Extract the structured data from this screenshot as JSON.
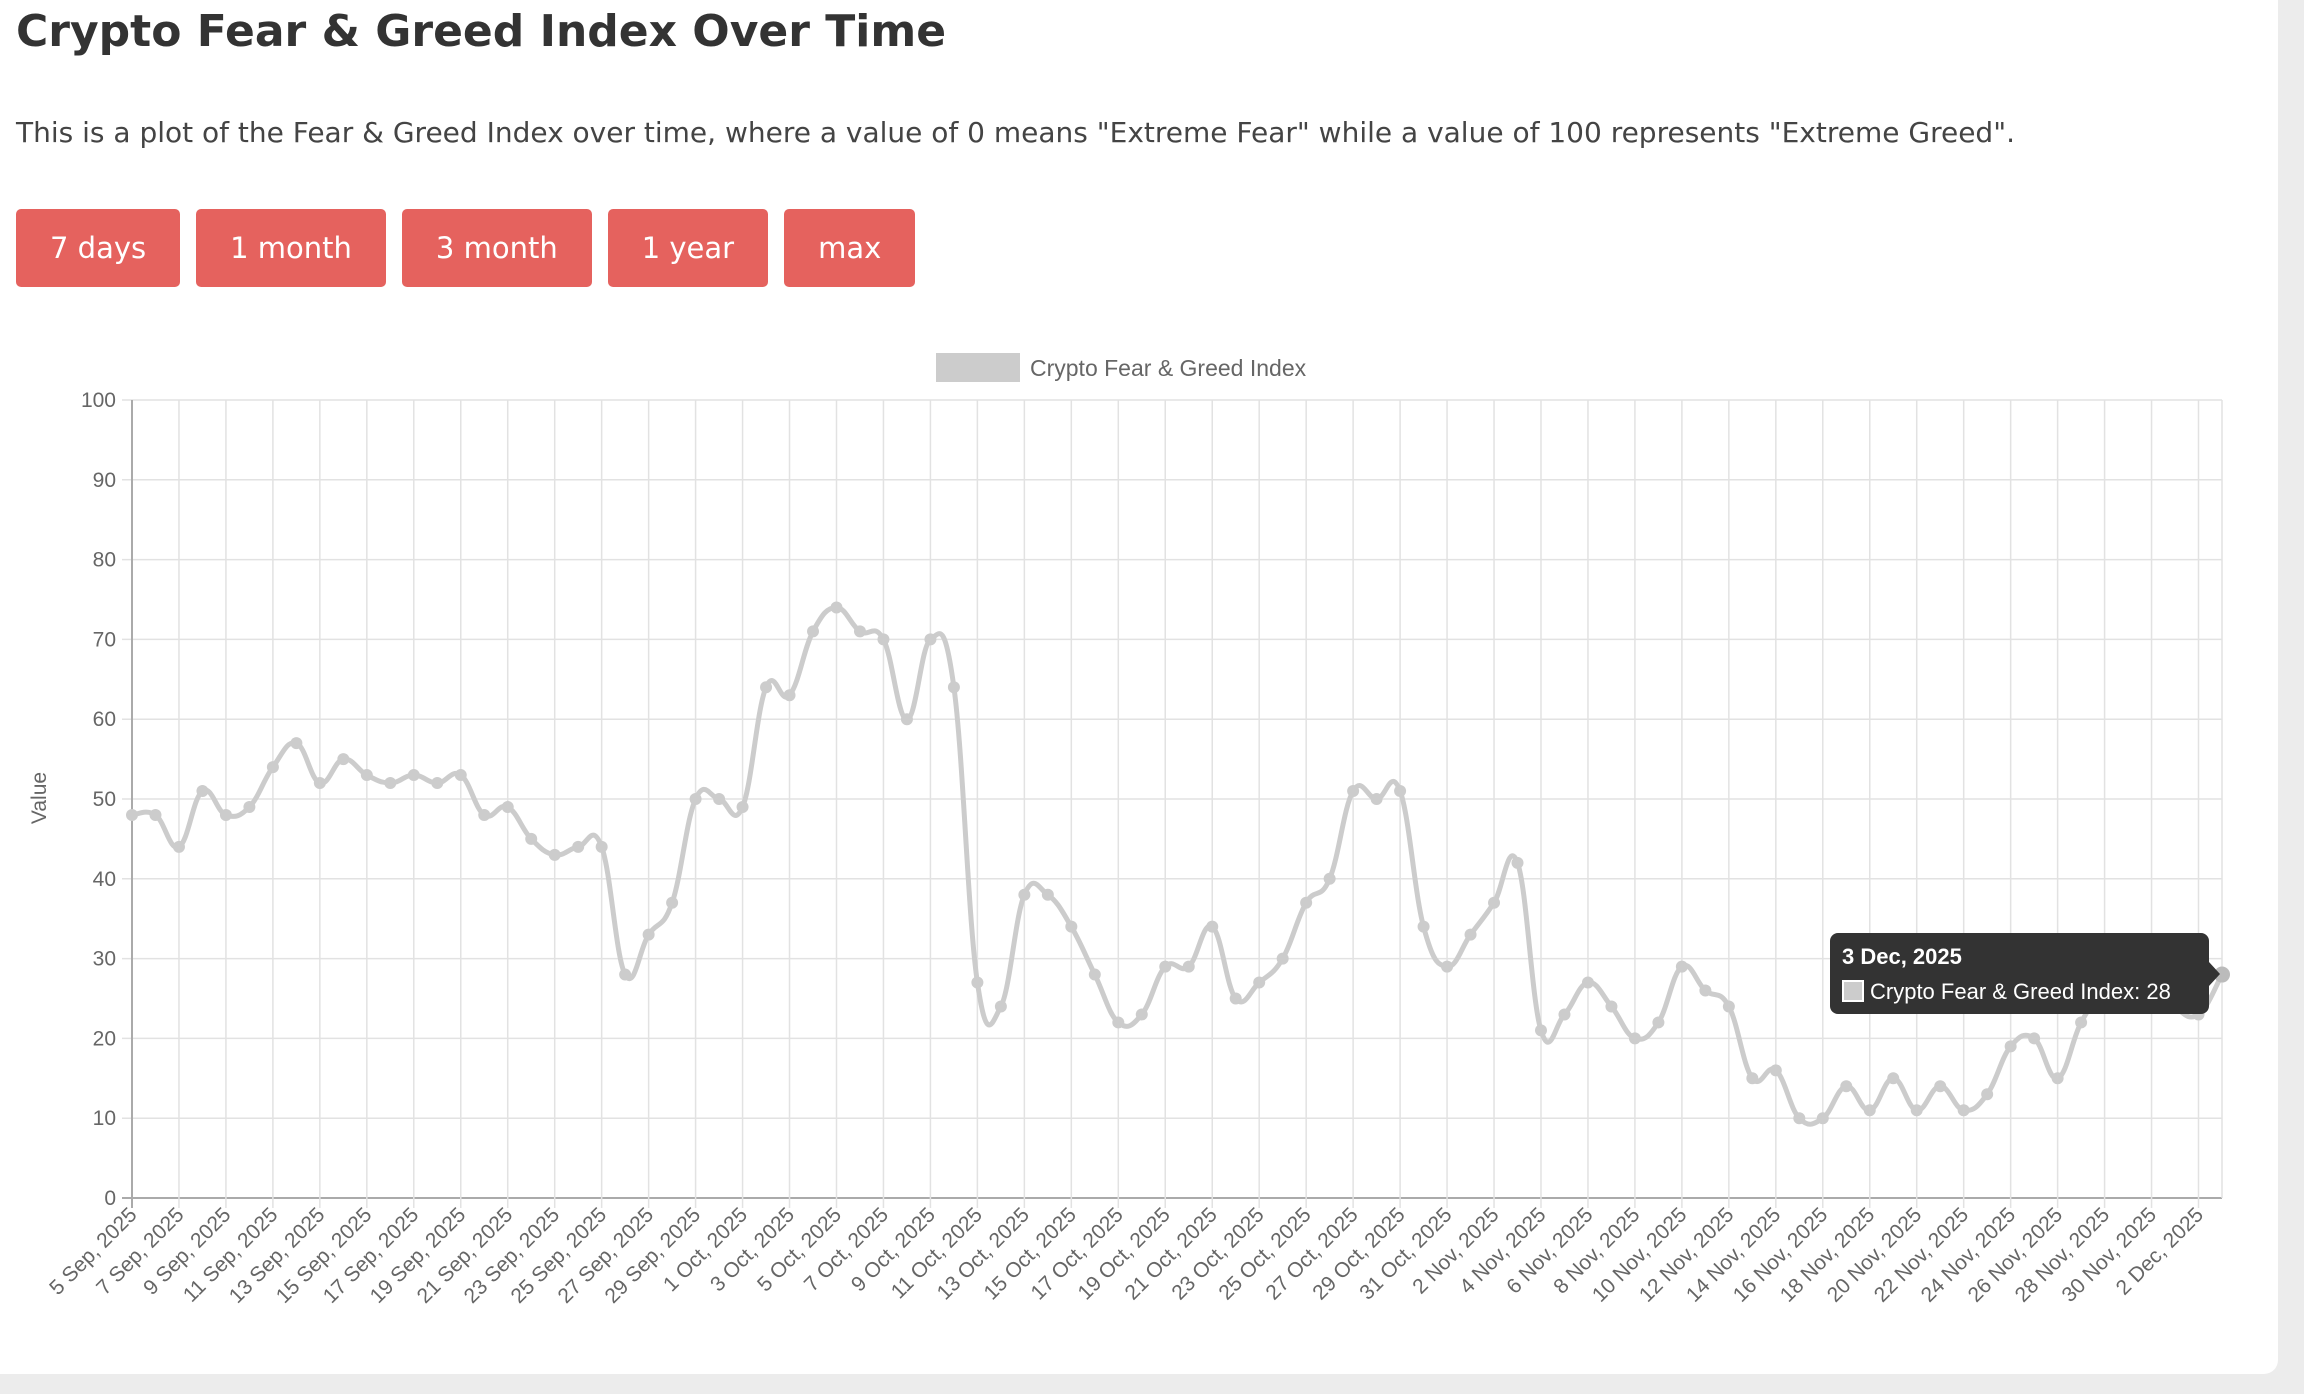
{
  "header": {
    "title": "Crypto Fear & Greed Index Over Time",
    "description": "This is a plot of the Fear & Greed Index over time, where a value of 0 means \"Extreme Fear\" while a value of 100 represents \"Extreme Greed\"."
  },
  "range_buttons": [
    {
      "label": "7 days"
    },
    {
      "label": "1 month"
    },
    {
      "label": "3 month"
    },
    {
      "label": "1 year"
    },
    {
      "label": "max"
    }
  ],
  "colors": {
    "button": "#e5625e",
    "series": "#cccccc",
    "tooltip_bg": "#333333"
  },
  "chart_data": {
    "type": "line",
    "legend": {
      "label": "Crypto Fear & Greed Index",
      "placement": "top"
    },
    "ylabel": "Value",
    "xlabel": "",
    "ylim": [
      0,
      100
    ],
    "yticks": [
      0,
      10,
      20,
      30,
      40,
      50,
      60,
      70,
      80,
      90,
      100
    ],
    "grid": true,
    "start_date": "2025-09-05",
    "end_date": "2025-12-03",
    "x_tick_labels": [
      "5 Sep, 2025",
      "7 Sep, 2025",
      "9 Sep, 2025",
      "11 Sep, 2025",
      "13 Sep, 2025",
      "15 Sep, 2025",
      "17 Sep, 2025",
      "19 Sep, 2025",
      "21 Sep, 2025",
      "23 Sep, 2025",
      "25 Sep, 2025",
      "27 Sep, 2025",
      "29 Sep, 2025",
      "1 Oct, 2025",
      "3 Oct, 2025",
      "5 Oct, 2025",
      "7 Oct, 2025",
      "9 Oct, 2025",
      "11 Oct, 2025",
      "13 Oct, 2025",
      "15 Oct, 2025",
      "17 Oct, 2025",
      "19 Oct, 2025",
      "21 Oct, 2025",
      "23 Oct, 2025",
      "25 Oct, 2025",
      "27 Oct, 2025",
      "29 Oct, 2025",
      "31 Oct, 2025",
      "2 Nov, 2025",
      "4 Nov, 2025",
      "6 Nov, 2025",
      "8 Nov, 2025",
      "10 Nov, 2025",
      "12 Nov, 2025",
      "14 Nov, 2025",
      "16 Nov, 2025",
      "18 Nov, 2025",
      "20 Nov, 2025",
      "22 Nov, 2025",
      "24 Nov, 2025",
      "26 Nov, 2025",
      "28 Nov, 2025",
      "30 Nov, 2025",
      "2 Dec, 2025"
    ],
    "series": [
      {
        "name": "Crypto Fear & Greed Index",
        "values": [
          48,
          48,
          44,
          51,
          48,
          49,
          54,
          57,
          52,
          55,
          53,
          52,
          53,
          52,
          53,
          48,
          49,
          45,
          43,
          44,
          44,
          28,
          33,
          37,
          50,
          50,
          49,
          64,
          63,
          71,
          74,
          71,
          70,
          60,
          70,
          64,
          27,
          24,
          38,
          38,
          34,
          28,
          22,
          23,
          29,
          29,
          34,
          25,
          27,
          30,
          37,
          40,
          51,
          50,
          51,
          34,
          29,
          33,
          37,
          42,
          21,
          23,
          27,
          24,
          20,
          22,
          29,
          26,
          24,
          15,
          16,
          10,
          10,
          14,
          11,
          15,
          11,
          14,
          11,
          13,
          19,
          20,
          15,
          22,
          26,
          28,
          28,
          24,
          23,
          28
        ]
      }
    ],
    "tooltip": {
      "title": "3 Dec, 2025",
      "label": "Crypto Fear & Greed Index: 28"
    }
  }
}
